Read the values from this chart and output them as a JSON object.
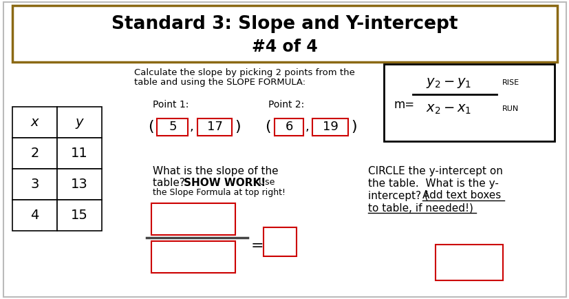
{
  "title_line1": "Standard 3: Slope and Y-intercept",
  "title_line2": "#4 of 4",
  "title_box_color": "#8B6914",
  "bg_color": "#ffffff",
  "text_color": "#000000",
  "red_box_color": "#cc0000",
  "calc_text1": "Calculate the slope by picking 2 points from the",
  "calc_text2": "table and using the SLOPE FORMULA:",
  "point1_label": "Point 1:",
  "point2_label": "Point 2:",
  "point1_x": "5",
  "point1_y": "17",
  "point2_x": "6",
  "point2_y": "19",
  "formula_rise": "RISE",
  "formula_run": "RUN",
  "table_headers": [
    "x",
    "y"
  ],
  "table_data": [
    [
      "2",
      "11"
    ],
    [
      "3",
      "13"
    ],
    [
      "4",
      "15"
    ]
  ],
  "circle_line1": "CIRCLE the y-intercept on",
  "circle_line2": "the table.  What is the y-",
  "circle_line3a": "intercept? (",
  "circle_line3b": "Add text boxes",
  "circle_line4": "to table, if needed!)"
}
